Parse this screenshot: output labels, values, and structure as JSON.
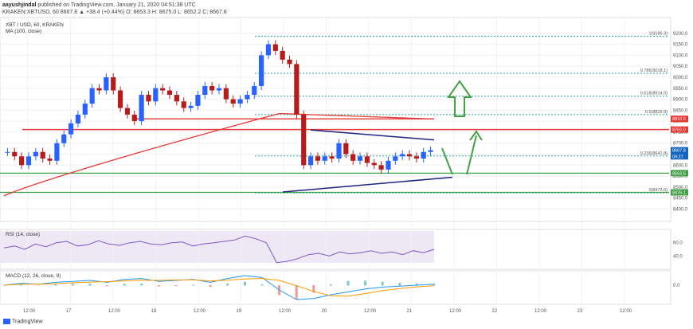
{
  "header": {
    "user": "aayushjindal",
    "published": "published on TradingView.com, January 21, 2020 04:51:38 UTC",
    "ohlc_line": "KRAKEN:XBTUSD, 60  8667.8  ▲ +38.4 (+0.44%)  O: 8653.3  H: 8675.0  L: 8652.2  C: 8667.8"
  },
  "footer": {
    "brand": "TradingView"
  },
  "chart_data": {
    "type": "candlestick",
    "symbol_label": "XBT / USD, 60, KRAKEN",
    "ma_label": "MA (100, close)",
    "rsi_label": "RSI (14, close)",
    "macd_label": "MACD (12, 26, close, 9)",
    "price_axis": {
      "ylim": [
        8380,
        9250
      ],
      "ticks": [
        8400,
        8450,
        8500,
        8550,
        8600,
        8650,
        8700,
        8750,
        8800,
        8850,
        8900,
        8950,
        9000,
        9050,
        9100,
        9150,
        9200
      ]
    },
    "time_ticks": [
      "12:00",
      "17",
      "12:00",
      "18",
      "12:00",
      "19",
      "12:00",
      "20",
      "12:00",
      "21",
      "12:00",
      "22",
      "12:00",
      "23",
      "12:00"
    ],
    "fib_levels": [
      {
        "label": "1(9186.3)",
        "value": 9186.3
      },
      {
        "label": "0.786(9018.1)",
        "value": 9018.1
      },
      {
        "label": "0.618(8914.0)",
        "value": 8914.0
      },
      {
        "label": "0.5(8829.9)",
        "value": 8829.9
      },
      {
        "label": "0.236(8641.8)",
        "value": 8641.8
      },
      {
        "label": "0(8473.6)",
        "value": 8473.6
      }
    ],
    "price_tags": [
      {
        "label": "8810.6",
        "value": 8810.6,
        "color": "#e53935"
      },
      {
        "label": "8762.0",
        "value": 8762.0,
        "color": "#e53935"
      },
      {
        "label": "8667.8",
        "value": 8667.8,
        "color": "#1565c0"
      },
      {
        "label": "09:27",
        "value": 8640.0,
        "color": "#1565c0"
      },
      {
        "label": "8563.5",
        "value": 8563.5,
        "color": "#43a047"
      },
      {
        "label": "8476.1",
        "value": 8476.1,
        "color": "#43a047"
      }
    ],
    "red_lines": [
      8762.0,
      8810.6
    ],
    "green_lines": [
      8563.5,
      8476.1
    ],
    "triangle": {
      "upper": [
        [
          8.4,
          8760
        ],
        [
          10.5,
          8715
        ]
      ],
      "lower": [
        [
          8.0,
          8478
        ],
        [
          10.8,
          8545
        ]
      ]
    },
    "rsi_ticks": [
      40.0,
      60.0
    ],
    "macd_ticks": [
      0.0
    ],
    "candles_close": [
      8660,
      8640,
      8600,
      8640,
      8660,
      8630,
      8620,
      8700,
      8740,
      8790,
      8830,
      8880,
      8950,
      8940,
      9000,
      8940,
      8860,
      8830,
      8800,
      8920,
      8890,
      8950,
      8940,
      8920,
      8890,
      8860,
      8870,
      8920,
      8960,
      8940,
      8950,
      8900,
      8880,
      8900,
      8920,
      8960,
      9100,
      9150,
      9120,
      9080,
      9060,
      8830,
      8600,
      8640,
      8620,
      8640,
      8630,
      8700,
      8650,
      8620,
      8640,
      8610,
      8600,
      8580,
      8620,
      8640,
      8650,
      8640,
      8630,
      8660,
      8668
    ],
    "ma_start": 8460,
    "ma_peak": 8835,
    "ma_end": 8810,
    "colors": {
      "up": "#2962ff",
      "down": "#b71c1c",
      "ma": "#e53935",
      "fib": "#26a69a",
      "green": "#43a047",
      "triangle": "#1a237e",
      "rsi": "#7e57c2",
      "macd": "#2196f3",
      "signal": "#ff9800"
    }
  }
}
